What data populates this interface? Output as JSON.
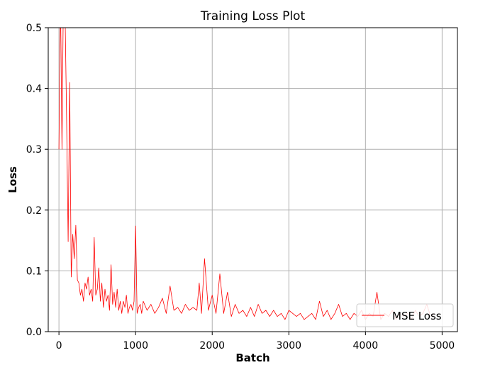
{
  "chart_data": {
    "type": "line",
    "title": "Training Loss Plot",
    "xlabel": "Batch",
    "ylabel": "Loss",
    "xlim": [
      -140,
      5200
    ],
    "ylim": [
      0.0,
      0.5
    ],
    "xticks": [
      0,
      1000,
      2000,
      3000,
      4000,
      5000
    ],
    "xtick_labels": [
      "0",
      "1000",
      "2000",
      "3000",
      "4000",
      "5000"
    ],
    "yticks": [
      0.0,
      0.1,
      0.2,
      0.3,
      0.4,
      0.5
    ],
    "ytick_labels": [
      "0.0",
      "0.1",
      "0.2",
      "0.3",
      "0.4",
      "0.5"
    ],
    "grid": true,
    "legend_position": "lower-right",
    "series": [
      {
        "name": "MSE Loss",
        "color": "#ff0000",
        "x": [
          0,
          20,
          40,
          60,
          80,
          100,
          120,
          140,
          160,
          180,
          200,
          220,
          240,
          260,
          280,
          300,
          320,
          340,
          360,
          380,
          400,
          420,
          440,
          460,
          480,
          500,
          520,
          540,
          560,
          580,
          600,
          620,
          640,
          660,
          680,
          700,
          720,
          740,
          760,
          780,
          800,
          820,
          840,
          860,
          880,
          900,
          920,
          940,
          960,
          980,
          1000,
          1020,
          1040,
          1060,
          1080,
          1100,
          1150,
          1200,
          1250,
          1300,
          1350,
          1400,
          1450,
          1500,
          1550,
          1600,
          1650,
          1700,
          1750,
          1800,
          1830,
          1860,
          1900,
          1950,
          2000,
          2050,
          2100,
          2150,
          2200,
          2250,
          2300,
          2350,
          2400,
          2450,
          2500,
          2550,
          2600,
          2650,
          2700,
          2750,
          2800,
          2850,
          2900,
          2950,
          3000,
          3050,
          3100,
          3150,
          3200,
          3250,
          3300,
          3350,
          3400,
          3450,
          3500,
          3550,
          3600,
          3650,
          3700,
          3750,
          3800,
          3850,
          3900,
          3950,
          4000,
          4050,
          4100,
          4150,
          4200,
          4250,
          4300,
          4350,
          4400,
          4450,
          4500,
          4550,
          4600,
          4650,
          4700,
          4750,
          4800,
          4850,
          4900
        ],
        "values": [
          0.3,
          0.55,
          0.3,
          0.58,
          0.52,
          0.35,
          0.148,
          0.41,
          0.09,
          0.16,
          0.12,
          0.175,
          0.085,
          0.08,
          0.06,
          0.07,
          0.05,
          0.08,
          0.07,
          0.09,
          0.06,
          0.07,
          0.05,
          0.155,
          0.06,
          0.07,
          0.105,
          0.05,
          0.08,
          0.04,
          0.07,
          0.05,
          0.06,
          0.035,
          0.11,
          0.045,
          0.065,
          0.04,
          0.07,
          0.035,
          0.05,
          0.03,
          0.05,
          0.04,
          0.06,
          0.03,
          0.04,
          0.045,
          0.035,
          0.05,
          0.174,
          0.03,
          0.04,
          0.045,
          0.03,
          0.05,
          0.035,
          0.045,
          0.03,
          0.04,
          0.055,
          0.03,
          0.075,
          0.035,
          0.04,
          0.03,
          0.045,
          0.035,
          0.04,
          0.035,
          0.08,
          0.03,
          0.12,
          0.035,
          0.06,
          0.03,
          0.095,
          0.03,
          0.065,
          0.025,
          0.045,
          0.03,
          0.035,
          0.025,
          0.04,
          0.025,
          0.045,
          0.03,
          0.035,
          0.025,
          0.035,
          0.025,
          0.03,
          0.02,
          0.035,
          0.03,
          0.025,
          0.03,
          0.02,
          0.025,
          0.03,
          0.02,
          0.05,
          0.025,
          0.035,
          0.02,
          0.03,
          0.045,
          0.025,
          0.03,
          0.02,
          0.03,
          0.025,
          0.035,
          0.02,
          0.03,
          0.025,
          0.065,
          0.02,
          0.03,
          0.025,
          0.035,
          0.02,
          0.03,
          0.025,
          0.03,
          0.02,
          0.035,
          0.025,
          0.03,
          0.045,
          0.025,
          0.03
        ]
      }
    ]
  }
}
